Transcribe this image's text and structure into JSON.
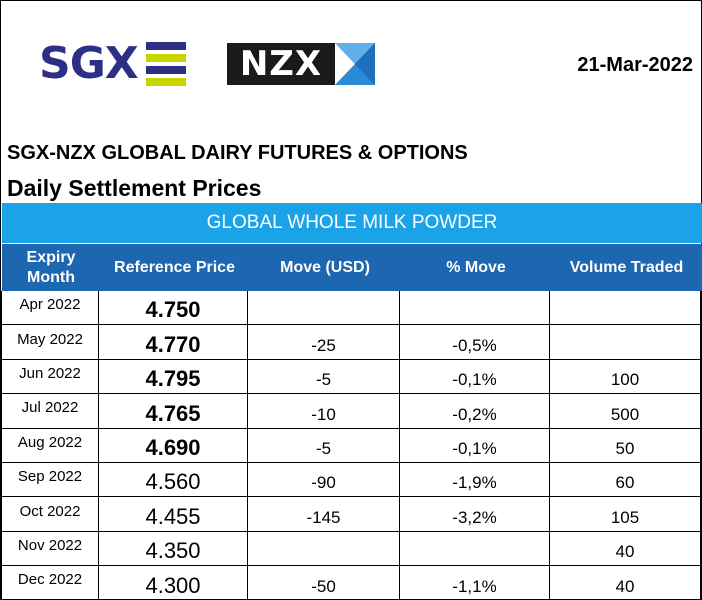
{
  "header": {
    "sgx_logo_text": "SGX",
    "nzx_logo_text": "NZX",
    "date": "21-Mar-2022"
  },
  "titles": {
    "product_group": "SGX-NZX GLOBAL DAIRY FUTURES & OPTIONS",
    "report": "Daily Settlement Prices",
    "product": "GLOBAL WHOLE MILK POWDER"
  },
  "colors": {
    "sgx_blue": "#2b2f86",
    "sgx_green": "#c8d400",
    "band": "#1ba3e8",
    "header": "#1d66b0"
  },
  "table": {
    "columns": [
      "Expiry Month",
      "Reference Price",
      "Move (USD)",
      "% Move",
      "Volume Traded"
    ],
    "rows": [
      {
        "month": "Apr 2022",
        "price": "4.750",
        "move": "",
        "pct": "",
        "volume": "",
        "bold": true
      },
      {
        "month": "May 2022",
        "price": "4.770",
        "move": "-25",
        "pct": "-0,5%",
        "volume": "",
        "bold": true
      },
      {
        "month": "Jun 2022",
        "price": "4.795",
        "move": "-5",
        "pct": "-0,1%",
        "volume": "100",
        "bold": true
      },
      {
        "month": "Jul 2022",
        "price": "4.765",
        "move": "-10",
        "pct": "-0,2%",
        "volume": "500",
        "bold": true
      },
      {
        "month": "Aug 2022",
        "price": "4.690",
        "move": "-5",
        "pct": "-0,1%",
        "volume": "50",
        "bold": true
      },
      {
        "month": "Sep 2022",
        "price": "4.560",
        "move": "-90",
        "pct": "-1,9%",
        "volume": "60",
        "bold": false
      },
      {
        "month": "Oct 2022",
        "price": "4.455",
        "move": "-145",
        "pct": "-3,2%",
        "volume": "105",
        "bold": false
      },
      {
        "month": "Nov 2022",
        "price": "4.350",
        "move": "",
        "pct": "",
        "volume": "40",
        "bold": false
      },
      {
        "month": "Dec 2022",
        "price": "4.300",
        "move": "-50",
        "pct": "-1,1%",
        "volume": "40",
        "bold": false
      }
    ]
  }
}
